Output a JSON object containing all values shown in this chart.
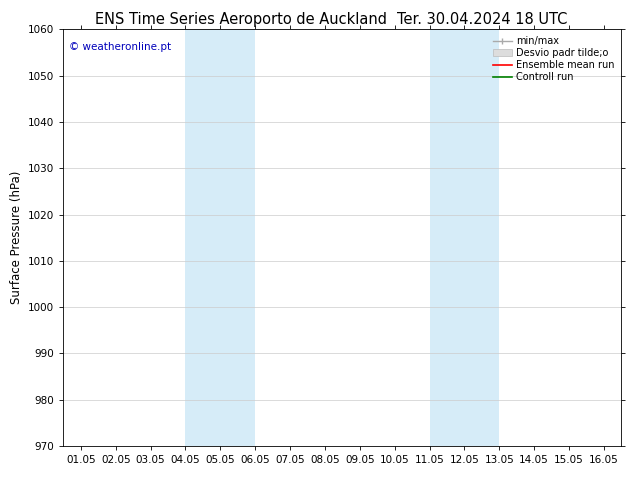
{
  "title_left": "ENS Time Series Aeroporto de Auckland",
  "title_right": "Ter. 30.04.2024 18 UTC",
  "ylabel": "Surface Pressure (hPa)",
  "watermark": "© weatheronline.pt",
  "watermark_color": "#0000bb",
  "ylim": [
    970,
    1060
  ],
  "yticks": [
    970,
    980,
    990,
    1000,
    1010,
    1020,
    1030,
    1040,
    1050,
    1060
  ],
  "xtick_labels": [
    "01.05",
    "02.05",
    "03.05",
    "04.05",
    "05.05",
    "06.05",
    "07.05",
    "08.05",
    "09.05",
    "10.05",
    "11.05",
    "12.05",
    "13.05",
    "14.05",
    "15.05",
    "16.05"
  ],
  "xtick_positions": [
    0,
    1,
    2,
    3,
    4,
    5,
    6,
    7,
    8,
    9,
    10,
    11,
    12,
    13,
    14,
    15
  ],
  "xlim": [
    -0.5,
    15.5
  ],
  "shaded_regions": [
    {
      "xmin": 3.0,
      "xmax": 5.0,
      "color": "#d6ecf8"
    },
    {
      "xmin": 10.0,
      "xmax": 12.0,
      "color": "#d6ecf8"
    }
  ],
  "bg_color": "#ffffff",
  "plot_bg_color": "#ffffff",
  "grid_color": "#cccccc",
  "title_fontsize": 10.5,
  "tick_fontsize": 7.5,
  "ylabel_fontsize": 8.5,
  "watermark_fontsize": 7.5
}
